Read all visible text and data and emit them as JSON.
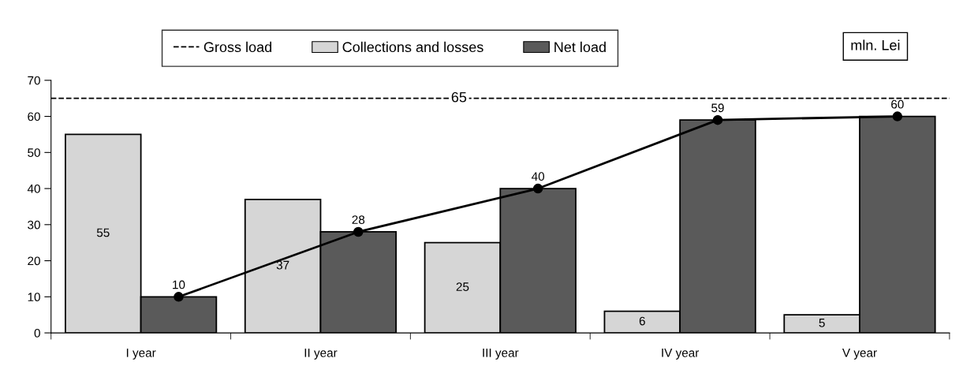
{
  "chart_data": {
    "type": "bar",
    "categories": [
      "I year",
      "II year",
      "III year",
      "IV year",
      "V year"
    ],
    "series": [
      {
        "name": "Collections and losses",
        "color": "#d6d6d6",
        "values": [
          55,
          37,
          25,
          6,
          5
        ],
        "value_labels": [
          "55",
          "37",
          "25",
          "6",
          "5"
        ]
      },
      {
        "name": "Net load",
        "color": "#5a5a5a",
        "values": [
          10,
          28,
          40,
          59,
          60
        ]
      },
      {
        "type": "line",
        "color": "#000000",
        "values": [
          10,
          28,
          40,
          59,
          60
        ],
        "value_labels": [
          "10",
          "28",
          "40",
          "59",
          "60"
        ],
        "marker": "circle",
        "line_style": "solid"
      }
    ],
    "ylim": [
      0,
      70
    ],
    "yticks": [
      0,
      10,
      20,
      30,
      40,
      50,
      60,
      70
    ],
    "ref_lines": [
      {
        "axis": "y",
        "value": 65,
        "label": "Gross load",
        "color": "#000000",
        "line_style": "dashed"
      }
    ],
    "annotations": [
      {
        "text": "65",
        "y": 65
      },
      "mln. Lei"
    ],
    "legend": "top"
  }
}
